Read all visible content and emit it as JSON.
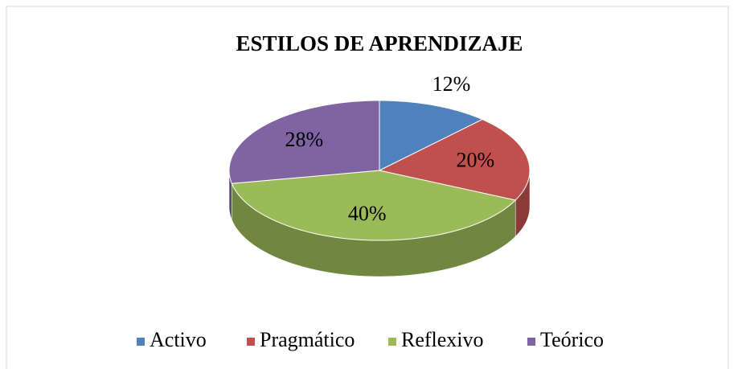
{
  "chart_data": {
    "type": "pie3d",
    "title": "ESTILOS DE APRENDIZAJE",
    "categories": [
      "Activo",
      "Pragmático",
      "Reflexivo",
      "Teórico"
    ],
    "values": [
      12,
      20,
      40,
      28
    ],
    "value_labels": [
      "12%",
      "20%",
      "40%",
      "28%"
    ],
    "colors": [
      "#4f81bd",
      "#c0504d",
      "#9bbb59",
      "#8064a2"
    ],
    "legend": "bottom"
  }
}
